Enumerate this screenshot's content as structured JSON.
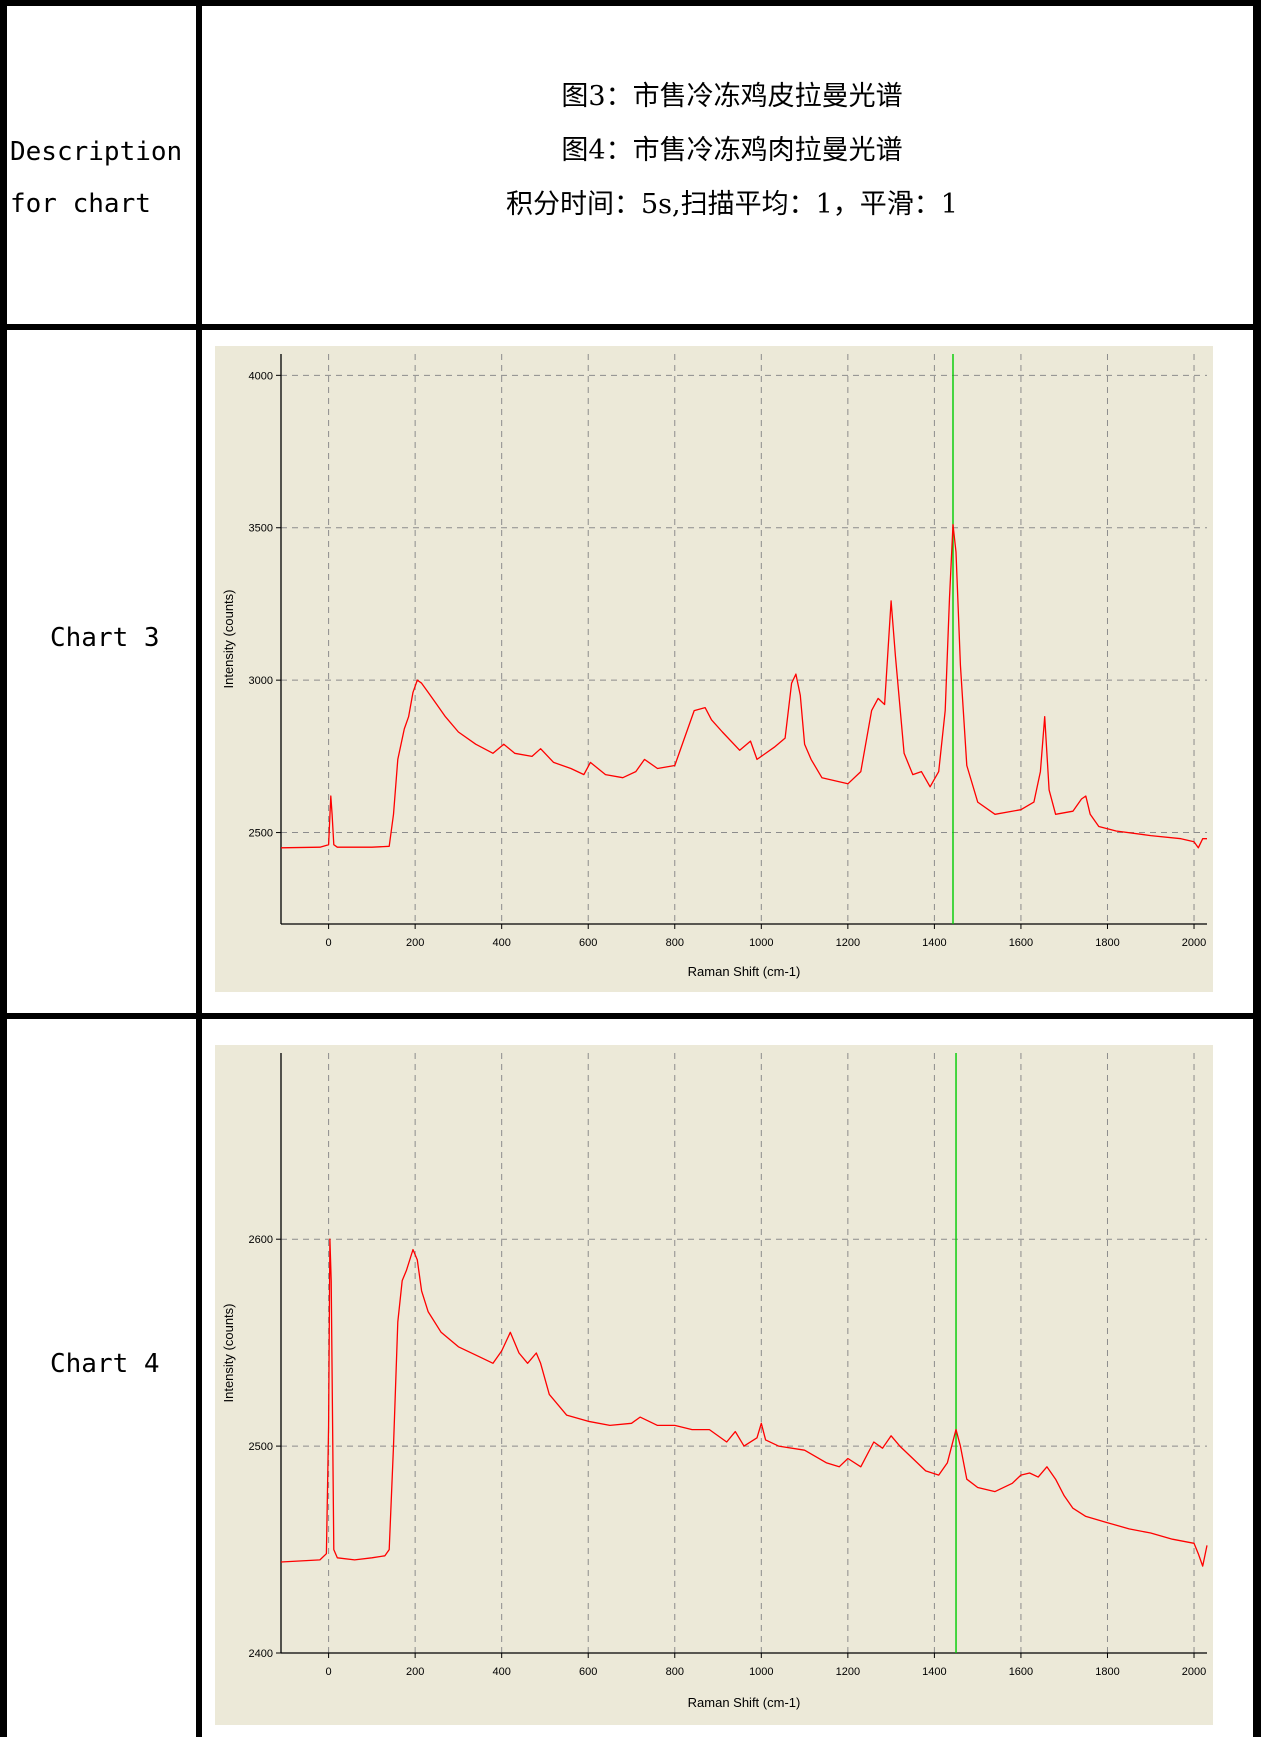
{
  "row_header_label": "Description\nfor chart",
  "row_header_lines": [
    "Description",
    "for chart"
  ],
  "description": {
    "lines": [
      "图3：市售冷冻鸡皮拉曼光谱",
      "图4：市售冷冻鸡肉拉曼光谱",
      "积分时间：5s,扫描平均：1，平滑：1"
    ]
  },
  "rows": [
    {
      "label": "Chart 3"
    },
    {
      "label": "Chart 4"
    }
  ],
  "colors": {
    "background": "#ece9d8",
    "line": "#ff0000",
    "marker": "#00cc00",
    "grid": "#8c8c8c",
    "border": "#000000"
  },
  "chart_data": [
    {
      "type": "line",
      "title": "",
      "xlabel": "Raman Shift (cm-1)",
      "ylabel": "Intensity (counts)",
      "xlim": [
        -110,
        2030
      ],
      "ylim": [
        2200,
        4070
      ],
      "xticks": [
        0,
        200,
        400,
        600,
        800,
        1000,
        1200,
        1400,
        1600,
        1800,
        2000
      ],
      "yticks": [
        2500,
        3000,
        3500,
        4000
      ],
      "grid": true,
      "marker_x": 1443,
      "series": [
        {
          "color": "#ff0000",
          "x": [
            -110,
            -20,
            0,
            5,
            8,
            12,
            20,
            60,
            100,
            140,
            150,
            160,
            175,
            185,
            195,
            205,
            215,
            230,
            250,
            270,
            300,
            340,
            380,
            405,
            430,
            470,
            490,
            520,
            560,
            590,
            605,
            640,
            680,
            710,
            730,
            760,
            800,
            820,
            845,
            870,
            885,
            910,
            950,
            975,
            990,
            1030,
            1055,
            1070,
            1080,
            1090,
            1100,
            1115,
            1140,
            1200,
            1230,
            1255,
            1270,
            1285,
            1300,
            1310,
            1330,
            1350,
            1370,
            1390,
            1410,
            1425,
            1435,
            1443,
            1450,
            1460,
            1475,
            1500,
            1540,
            1600,
            1630,
            1645,
            1655,
            1665,
            1680,
            1720,
            1740,
            1750,
            1760,
            1780,
            1820,
            1900,
            1970,
            2000,
            2010,
            2020,
            2030
          ],
          "y": [
            2450,
            2452,
            2460,
            2620,
            2560,
            2460,
            2452,
            2452,
            2452,
            2455,
            2560,
            2740,
            2840,
            2880,
            2960,
            3000,
            2990,
            2960,
            2920,
            2880,
            2830,
            2790,
            2760,
            2790,
            2760,
            2750,
            2775,
            2730,
            2710,
            2690,
            2730,
            2690,
            2680,
            2700,
            2740,
            2710,
            2720,
            2800,
            2900,
            2910,
            2870,
            2830,
            2770,
            2800,
            2740,
            2780,
            2810,
            2990,
            3020,
            2950,
            2790,
            2740,
            2680,
            2660,
            2700,
            2900,
            2940,
            2920,
            3260,
            3080,
            2760,
            2690,
            2700,
            2650,
            2700,
            2900,
            3270,
            3510,
            3420,
            3050,
            2720,
            2600,
            2560,
            2575,
            2600,
            2700,
            2880,
            2640,
            2560,
            2570,
            2610,
            2620,
            2560,
            2520,
            2505,
            2490,
            2480,
            2470,
            2450,
            2480,
            2480
          ]
        }
      ]
    },
    {
      "type": "line",
      "title": "",
      "xlabel": "Raman Shift (cm-1)",
      "ylabel": "Intensity (counts)",
      "xlim": [
        -110,
        2030
      ],
      "ylim": [
        2400,
        2690
      ],
      "xticks": [
        0,
        200,
        400,
        600,
        800,
        1000,
        1200,
        1400,
        1600,
        1800,
        2000
      ],
      "yticks": [
        2400,
        2500,
        2600
      ],
      "grid": true,
      "marker_x": 1450,
      "series": [
        {
          "color": "#ff0000",
          "x": [
            -110,
            -20,
            -5,
            0,
            3,
            6,
            12,
            20,
            60,
            100,
            130,
            140,
            150,
            160,
            170,
            180,
            195,
            205,
            215,
            230,
            260,
            300,
            350,
            380,
            400,
            420,
            440,
            460,
            480,
            490,
            510,
            550,
            600,
            650,
            700,
            720,
            760,
            800,
            840,
            880,
            920,
            940,
            960,
            990,
            1000,
            1010,
            1040,
            1100,
            1150,
            1180,
            1200,
            1230,
            1260,
            1280,
            1300,
            1320,
            1350,
            1380,
            1410,
            1430,
            1440,
            1450,
            1460,
            1475,
            1500,
            1540,
            1580,
            1600,
            1620,
            1640,
            1660,
            1680,
            1700,
            1720,
            1750,
            1800,
            1850,
            1900,
            1950,
            2000,
            2010,
            2020,
            2030
          ],
          "y": [
            2444,
            2445,
            2448,
            2510,
            2600,
            2580,
            2450,
            2446,
            2445,
            2446,
            2447,
            2450,
            2500,
            2560,
            2580,
            2585,
            2595,
            2590,
            2575,
            2565,
            2555,
            2548,
            2543,
            2540,
            2546,
            2555,
            2545,
            2540,
            2545,
            2540,
            2525,
            2515,
            2512,
            2510,
            2511,
            2514,
            2510,
            2510,
            2508,
            2508,
            2502,
            2507,
            2500,
            2504,
            2511,
            2503,
            2500,
            2498,
            2492,
            2490,
            2494,
            2490,
            2502,
            2499,
            2505,
            2500,
            2494,
            2488,
            2486,
            2492,
            2500,
            2508,
            2500,
            2484,
            2480,
            2478,
            2482,
            2486,
            2487,
            2485,
            2490,
            2484,
            2476,
            2470,
            2466,
            2463,
            2460,
            2458,
            2455,
            2453,
            2448,
            2442,
            2452
          ]
        }
      ]
    }
  ]
}
